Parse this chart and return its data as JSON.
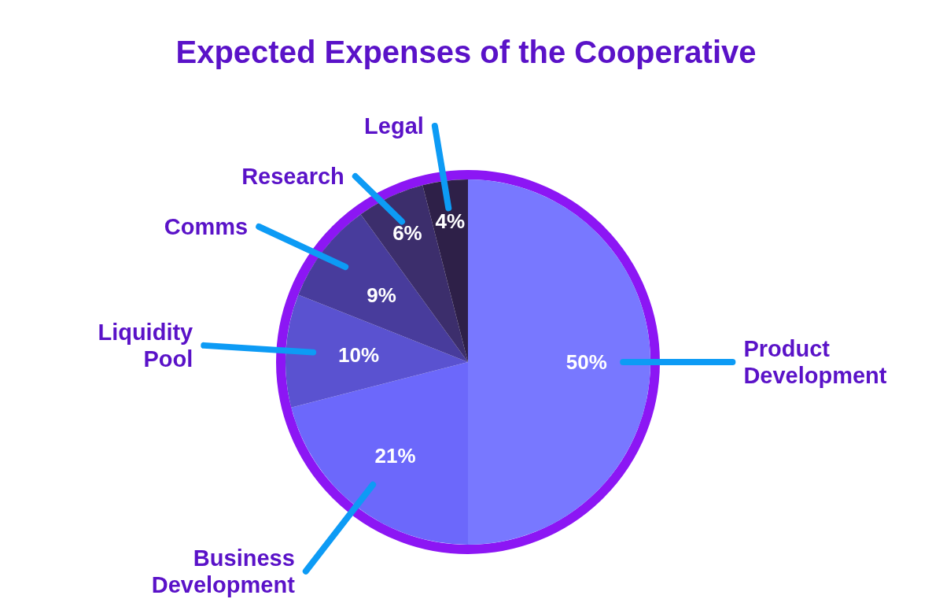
{
  "chart_data": {
    "type": "pie",
    "title": "Expected Expenses of the Cooperative",
    "categories": [
      "Product Development",
      "Business Development",
      "Liquidity Pool",
      "Comms",
      "Research",
      "Legal"
    ],
    "values": [
      50,
      21,
      10,
      9,
      6,
      4
    ],
    "value_labels": [
      "50%",
      "21%",
      "10%",
      "9%",
      "6%",
      "4%"
    ],
    "colors": [
      "#7878ff",
      "#6c68fb",
      "#5a52d0",
      "#483c9c",
      "#3c2e6c",
      "#2e2048"
    ]
  }
}
